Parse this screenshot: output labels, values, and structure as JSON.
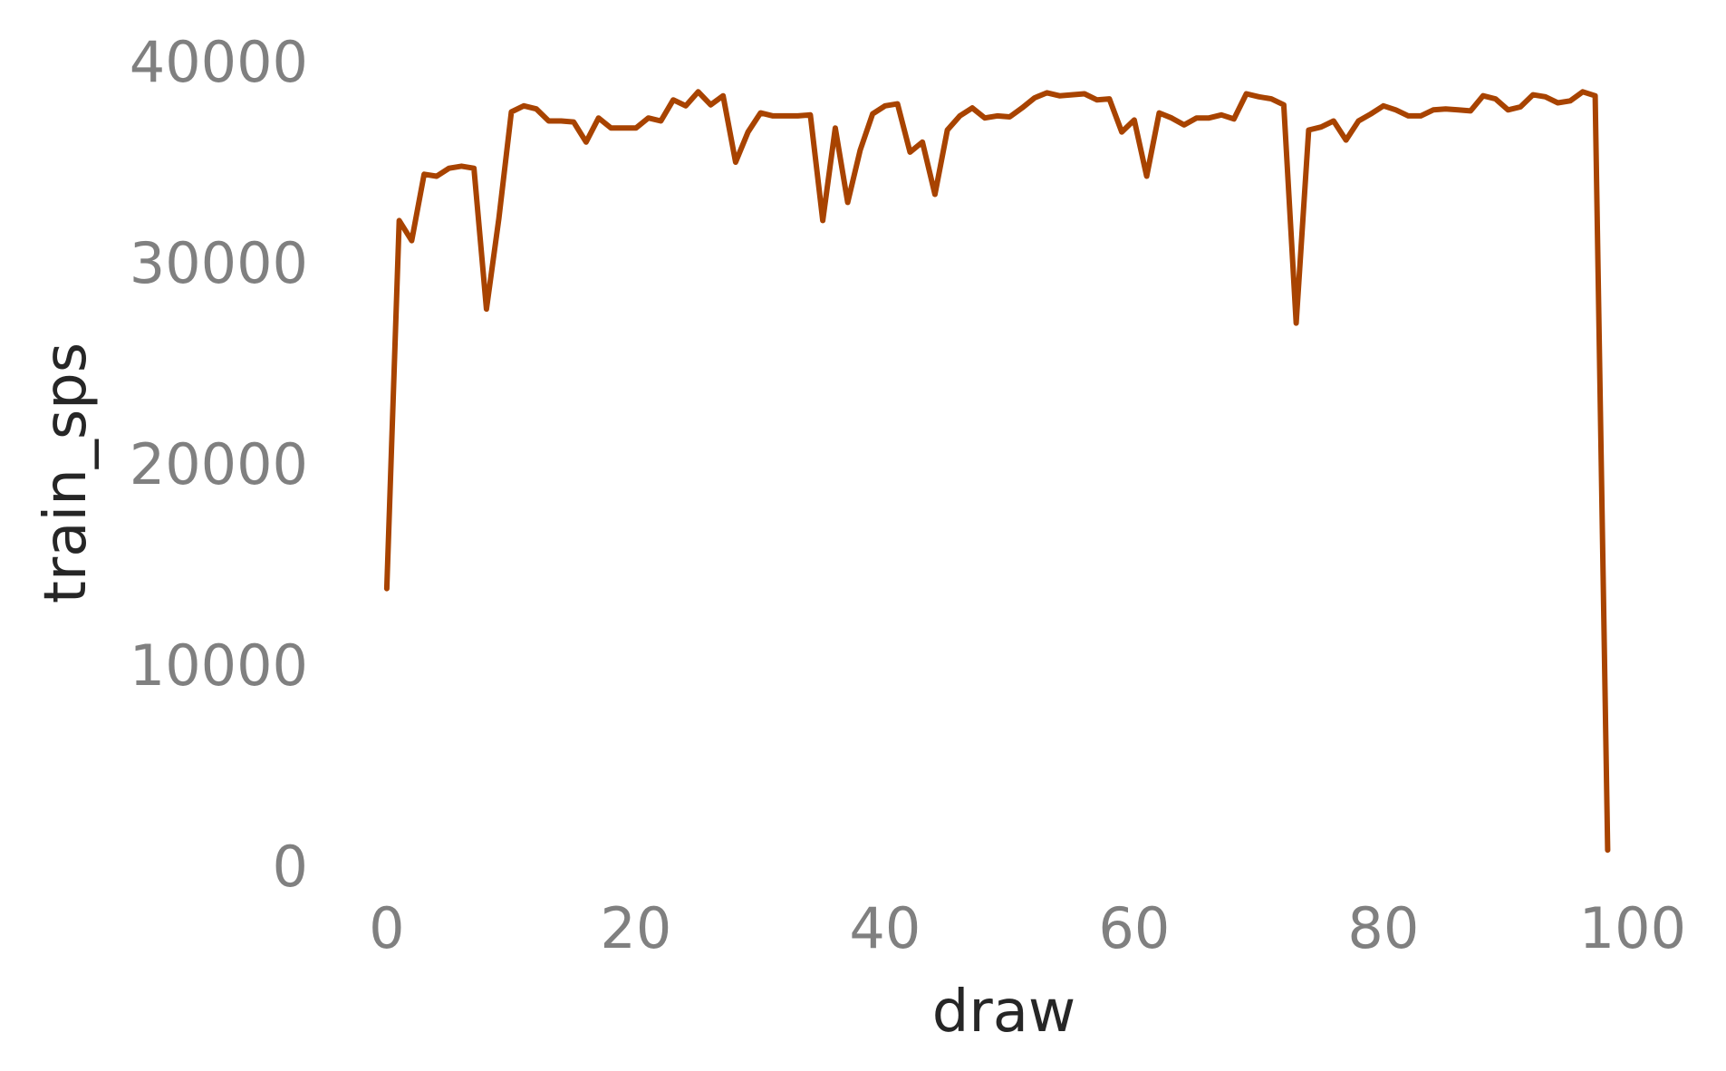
{
  "chart_data": {
    "type": "line",
    "title": "",
    "xlabel": "draw",
    "ylabel": "train_sps",
    "xlim": [
      -4.5,
      103.5
    ],
    "ylim": [
      0,
      40000
    ],
    "xticks": [
      0,
      20,
      40,
      60,
      80,
      100
    ],
    "yticks": [
      0,
      10000,
      20000,
      30000,
      40000
    ],
    "xtick_labels": [
      "0",
      "20",
      "40",
      "60",
      "80",
      "100"
    ],
    "ytick_labels": [
      "0",
      "10000",
      "20000",
      "30000",
      "40000"
    ],
    "grid": false,
    "colors": {
      "line": "#a84300"
    },
    "series": [
      {
        "x": [
          0,
          1,
          2,
          3,
          4,
          5,
          6,
          7,
          8,
          9,
          10,
          11,
          12,
          13,
          14,
          15,
          16,
          17,
          18,
          19,
          20,
          21,
          22,
          23,
          24,
          25,
          26,
          27,
          28,
          29,
          30,
          31,
          32,
          33,
          34,
          35,
          36,
          37,
          38,
          39,
          40,
          41,
          42,
          43,
          44,
          45,
          46,
          47,
          48,
          49,
          50,
          51,
          52,
          53,
          54,
          55,
          56,
          57,
          58,
          59,
          60,
          61,
          62,
          63,
          64,
          65,
          66,
          67,
          68,
          69,
          70,
          71,
          72,
          73,
          74,
          75,
          76,
          77,
          78,
          79,
          80,
          81,
          82,
          83,
          84,
          85,
          86,
          87,
          88,
          89,
          90,
          91,
          92,
          93,
          94,
          95,
          96,
          97,
          98
        ],
        "values": [
          13800,
          32100,
          31100,
          34400,
          34300,
          34700,
          34800,
          34700,
          27700,
          32200,
          37500,
          37800,
          37650,
          37050,
          37050,
          37000,
          36000,
          37200,
          36700,
          36700,
          36700,
          37200,
          37050,
          38100,
          37800,
          38500,
          37850,
          38300,
          35000,
          36500,
          37450,
          37300,
          37300,
          37300,
          37350,
          32100,
          36700,
          33000,
          35600,
          37400,
          37800,
          37900,
          35500,
          36000,
          33400,
          36600,
          37300,
          37700,
          37200,
          37300,
          37250,
          37700,
          38200,
          38450,
          38300,
          38350,
          38400,
          38100,
          38150,
          36500,
          37100,
          34300,
          37450,
          37200,
          36850,
          37200,
          37200,
          37350,
          37150,
          38400,
          38250,
          38150,
          37850,
          27000,
          36600,
          36750,
          37050,
          36100,
          37050,
          37400,
          37800,
          37600,
          37300,
          37300,
          37600,
          37650,
          37600,
          37550,
          38300,
          38150,
          37600,
          37750,
          38350,
          38250,
          37950,
          38050,
          38500,
          38300,
          800
        ]
      }
    ]
  }
}
